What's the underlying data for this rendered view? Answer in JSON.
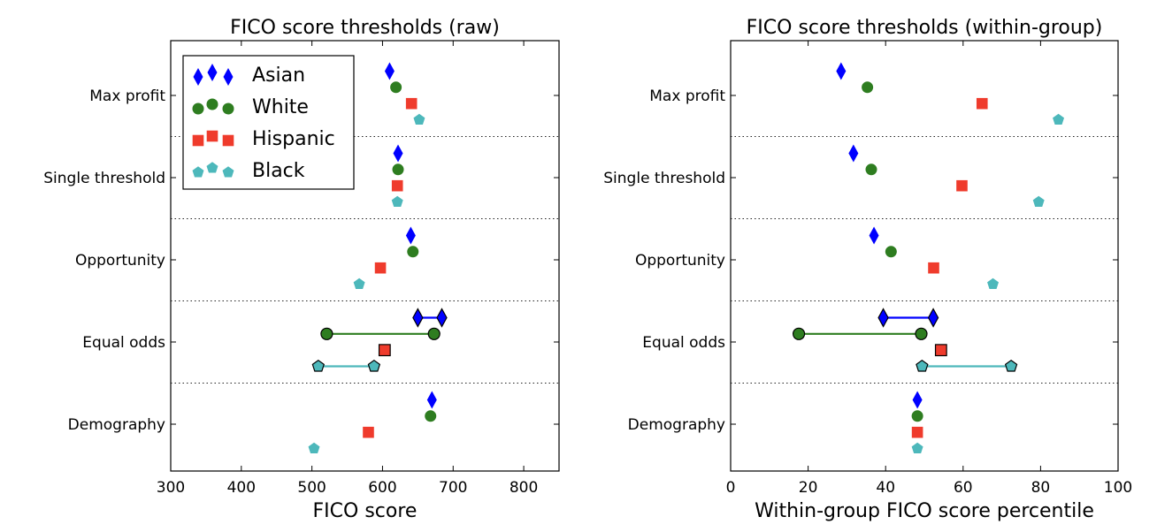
{
  "chart_data": [
    {
      "type": "scatter",
      "title": "FICO score thresholds (raw)",
      "xlabel": "FICO score",
      "ylabel": "",
      "xlim": [
        300,
        850
      ],
      "xticks": [
        "300",
        "400",
        "500",
        "600",
        "700",
        "800"
      ],
      "xtick_values": [
        300,
        400,
        500,
        600,
        700,
        800
      ],
      "categories": [
        "Max profit",
        "Single threshold",
        "Opportunity",
        "Equal odds",
        "Demography"
      ],
      "grid": "dotted separators between categories",
      "legend": "top-left",
      "series": [
        {
          "name": "Asian",
          "color": "#0000ff",
          "marker": "diamond",
          "values": [
            610,
            622,
            640,
            [
              650,
              684
            ],
            670
          ]
        },
        {
          "name": "White",
          "color": "#2e7d20",
          "marker": "circle",
          "values": [
            619,
            622,
            643,
            [
              521,
              673
            ],
            668
          ]
        },
        {
          "name": "Hispanic",
          "color": "#ef3b2c",
          "marker": "square",
          "values": [
            641,
            621,
            597,
            603,
            580
          ]
        },
        {
          "name": "Black",
          "color": "#4db8bb",
          "marker": "pentagon",
          "values": [
            652,
            621,
            567,
            [
              509,
              588
            ],
            503
          ]
        }
      ]
    },
    {
      "type": "scatter",
      "title": "FICO score thresholds (within-group)",
      "xlabel": "Within-group FICO score percentile",
      "ylabel": "",
      "xlim": [
        0,
        100
      ],
      "xticks": [
        "0",
        "20",
        "40",
        "60",
        "80",
        "100"
      ],
      "xtick_values": [
        0,
        20,
        40,
        60,
        80,
        100
      ],
      "categories": [
        "Max profit",
        "Single threshold",
        "Opportunity",
        "Equal odds",
        "Demography"
      ],
      "grid": "dotted separators between categories",
      "series": [
        {
          "name": "Asian",
          "color": "#0000ff",
          "marker": "diamond",
          "values": [
            28.5,
            31.7,
            37,
            [
              39.4,
              52.3
            ],
            48.2
          ]
        },
        {
          "name": "White",
          "color": "#2e7d20",
          "marker": "circle",
          "values": [
            35.3,
            36.3,
            41.4,
            [
              17.6,
              49.2
            ],
            48.2
          ]
        },
        {
          "name": "Hispanic",
          "color": "#ef3b2c",
          "marker": "square",
          "values": [
            64.9,
            59.7,
            52.4,
            54.3,
            48.2
          ]
        },
        {
          "name": "Black",
          "color": "#4db8bb",
          "marker": "pentagon",
          "values": [
            84.6,
            79.5,
            67.7,
            [
              49.4,
              72.4
            ],
            48.2
          ]
        }
      ]
    }
  ]
}
